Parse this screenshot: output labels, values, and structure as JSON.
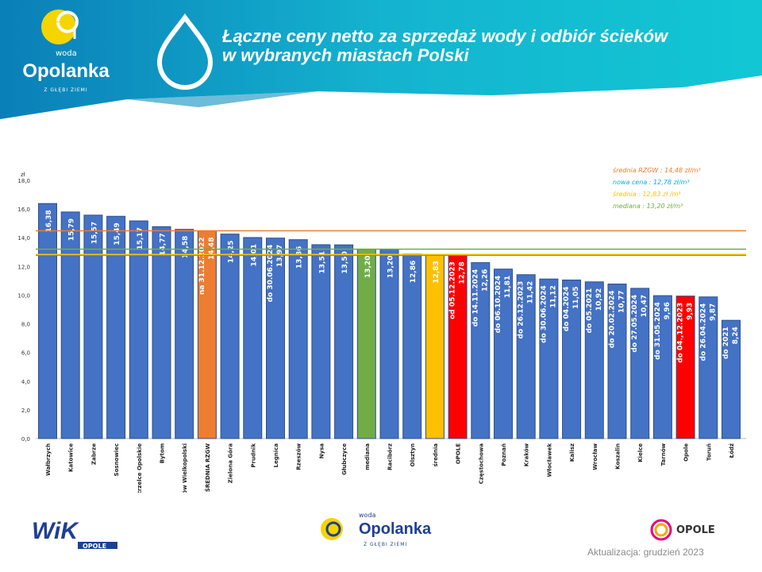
{
  "header": {
    "title_line1": "Łączne ceny netto za sprzedaż wody i odbiór ścieków",
    "title_line2": "w wybranych miastach Polski",
    "logo": {
      "word": "woda",
      "name": "Opolanka",
      "tagline": "Z GŁĘBI ZIEMI"
    }
  },
  "footer": {
    "wik_logo": "WiK OPOLE",
    "opolanka_logo": {
      "word": "woda",
      "name": "Opolanka",
      "tagline": "Z GŁĘBI ZIEMI"
    },
    "opole_logo": "OPOLE",
    "update": "Aktualizacja: grudzień 2023"
  },
  "colors": {
    "blue": "#4472C4",
    "orange": "#ED7D31",
    "green": "#70AD47",
    "yellow": "#FFC000",
    "red": "#FF0000",
    "cyan": "#00B0F0"
  },
  "chart_data": {
    "type": "bar",
    "ylabel": "zł",
    "ylim": [
      0,
      18
    ],
    "yticks": [
      "0,0",
      "2,0",
      "4,0",
      "6,0",
      "8,0",
      "10,0",
      "12,0",
      "14,0",
      "16,0",
      "18,0"
    ],
    "categories": [
      "Wałbrzych",
      "Katowice",
      "Zabrze",
      "Sosnowiec",
      "Strzelce Opolskie",
      "Bytom",
      "Gorzów Wielkopolski",
      "ŚREDNIA RZGW",
      "Zielona Góra",
      "Prudnik",
      "Legnica",
      "Rzeszów",
      "Nysa",
      "Głubczyce",
      "mediana",
      "Racibórz",
      "Olsztyn",
      "średnia",
      "OPOLE",
      "Częstochowa",
      "Poznań",
      "Kraków",
      "Włocławek",
      "Kalisz",
      "Wrocław",
      "Koszalin",
      "Kielce",
      "Tarnów",
      "Opole",
      "Toruń",
      "Łódź"
    ],
    "values": [
      16.38,
      15.79,
      15.57,
      15.49,
      15.17,
      14.77,
      14.58,
      14.48,
      14.25,
      14.01,
      13.97,
      13.86,
      13.51,
      13.5,
      13.2,
      13.2,
      12.86,
      12.83,
      12.78,
      12.26,
      11.81,
      11.42,
      11.12,
      11.05,
      10.92,
      10.77,
      10.47,
      9.96,
      9.93,
      9.87,
      8.24
    ],
    "value_labels": [
      "16,38",
      "15,79",
      "15,57",
      "15,49",
      "15,17",
      "14,77",
      "14,58",
      "14,48",
      "14,25",
      "14,01",
      "13,97",
      "13,86",
      "13,51",
      "13,50",
      "13,20",
      "13,20",
      "12,86",
      "12,83",
      "12,78",
      "12,26",
      "11,81",
      "11,42",
      "11,12",
      "11,05",
      "10,92",
      "10,77",
      "10,47",
      "9,96",
      "9,93",
      "9,87",
      "8,24"
    ],
    "date_labels": [
      "",
      "",
      "",
      "",
      "",
      "",
      "",
      "na 31.12.2022",
      "",
      "",
      "do 30.06.2024",
      "",
      "",
      "",
      "",
      "",
      "",
      "",
      "od 05.12.2023",
      "do 14.11.2024",
      "do 06.10.2024",
      "do 26.12.2023",
      "do 30.06.2024",
      "do 04.2024",
      "do 05.2021",
      "do 20.02.2024",
      "do 27.05.2024",
      "do 31.05.2024",
      "do 04.,12.2023",
      "do 26.04.2024",
      "do 2021"
    ],
    "bar_colors": [
      "#4472C4",
      "#4472C4",
      "#4472C4",
      "#4472C4",
      "#4472C4",
      "#4472C4",
      "#4472C4",
      "#ED7D31",
      "#4472C4",
      "#4472C4",
      "#4472C4",
      "#4472C4",
      "#4472C4",
      "#4472C4",
      "#70AD47",
      "#4472C4",
      "#4472C4",
      "#FFC000",
      "#FF0000",
      "#4472C4",
      "#4472C4",
      "#4472C4",
      "#4472C4",
      "#4472C4",
      "#4472C4",
      "#4472C4",
      "#4472C4",
      "#4472C4",
      "#FF0000",
      "#4472C4",
      "#4472C4"
    ],
    "reference_lines": [
      {
        "label": "średnia RZGW : 14,48 zł/m³",
        "value": 14.48,
        "color": "#ED7D31"
      },
      {
        "label": "nowa cena : 12,78 zł/m³",
        "value": 12.78,
        "color": "#00B0F0"
      },
      {
        "label": "średnia : 12,83 zł /m³",
        "value": 12.83,
        "color": "#FFC000"
      },
      {
        "label": "mediana : 13,20 zł/m³",
        "value": 13.2,
        "color": "#70AD47"
      }
    ],
    "legend_position": "top-right",
    "grid": false
  }
}
